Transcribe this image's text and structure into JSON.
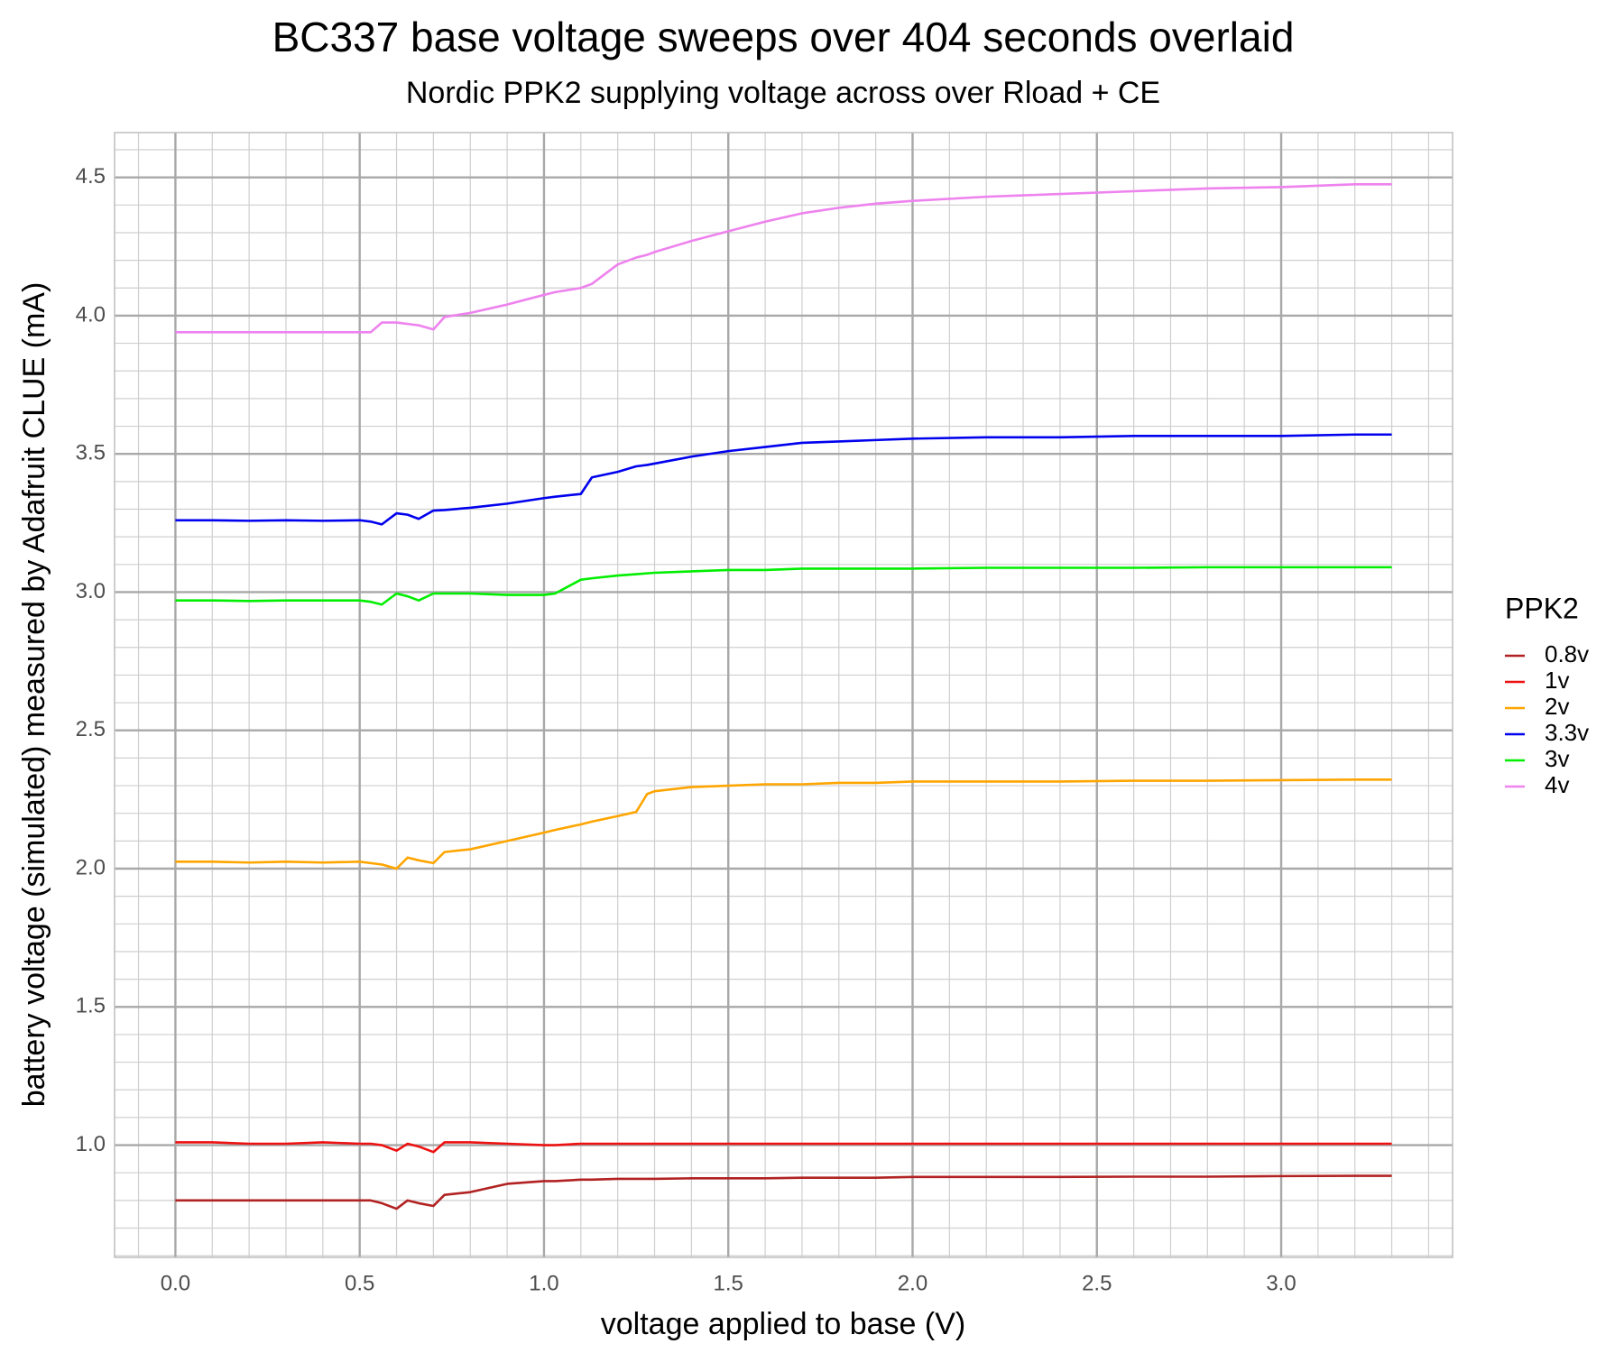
{
  "chart_data": {
    "type": "line",
    "title": "BC337 base voltage sweeps over 404 seconds overlaid",
    "subtitle": "Nordic PPK2 supplying voltage across over Rload + CE",
    "x_label": "voltage applied to base (V)",
    "y_label": "battery voltage (simulated) measured by Adafruit CLUE (mA)",
    "legend_title": "PPK2",
    "legend_position": "right",
    "grid": true,
    "xlim": [
      -0.165,
      3.465
    ],
    "ylim": [
      0.594,
      4.662
    ],
    "xticks": [
      {
        "value": 0,
        "label": "0.0"
      },
      0.5,
      {
        "value": 1,
        "label": "1.0"
      },
      1.5,
      {
        "value": 2,
        "label": "2.0"
      },
      2.5,
      {
        "value": 3,
        "label": "3.0"
      }
    ],
    "yticks": [
      {
        "value": 1,
        "label": "1.0"
      },
      1.5,
      {
        "value": 2,
        "label": "2.0"
      },
      2.5,
      {
        "value": 3,
        "label": "3.0"
      },
      3.5,
      {
        "value": 4,
        "label": "4.0"
      },
      4.5
    ],
    "x_minor_ticks": [
      -0.1,
      0.1,
      0.2,
      0.3,
      0.4,
      0.6,
      0.7,
      0.8,
      0.9,
      1.1,
      1.2,
      1.3,
      1.4,
      1.6,
      1.7,
      1.8,
      1.9,
      2.1,
      2.2,
      2.3,
      2.4,
      2.6,
      2.7,
      2.8,
      2.9,
      3.1,
      3.2,
      3.3,
      3.4
    ],
    "y_minor_ticks": [
      0.6,
      0.7,
      0.8,
      0.9,
      1.1,
      1.2,
      1.3,
      1.4,
      1.6,
      1.7,
      1.8,
      1.9,
      2.1,
      2.2,
      2.3,
      2.4,
      2.6,
      2.7,
      2.8,
      2.9,
      3.1,
      3.2,
      3.3,
      3.4,
      3.6,
      3.7,
      3.8,
      3.9,
      4.1,
      4.2,
      4.3,
      4.4,
      4.6
    ],
    "x": [
      0,
      0.1,
      0.2,
      0.3,
      0.4,
      0.5,
      0.53,
      0.56,
      0.6,
      0.63,
      0.66,
      0.7,
      0.73,
      0.8,
      0.9,
      1.0,
      1.03,
      1.1,
      1.13,
      1.2,
      1.25,
      1.28,
      1.3,
      1.4,
      1.5,
      1.6,
      1.7,
      1.8,
      1.9,
      2.0,
      2.2,
      2.4,
      2.6,
      2.8,
      3.0,
      3.2,
      3.3
    ],
    "series": [
      {
        "name": "0.8v",
        "color": "#b22222",
        "values": [
          0.8,
          0.8,
          0.8,
          0.8,
          0.8,
          0.8,
          0.8,
          0.79,
          0.77,
          0.8,
          0.79,
          0.78,
          0.82,
          0.83,
          0.86,
          0.87,
          0.87,
          0.875,
          0.875,
          0.878,
          0.878,
          0.878,
          0.878,
          0.88,
          0.88,
          0.88,
          0.882,
          0.882,
          0.882,
          0.885,
          0.885,
          0.885,
          0.886,
          0.886,
          0.888,
          0.889,
          0.889
        ]
      },
      {
        "name": "1v",
        "color": "#ee1111",
        "values": [
          1.01,
          1.01,
          1.005,
          1.005,
          1.01,
          1.005,
          1.005,
          1.0,
          0.98,
          1.005,
          0.995,
          0.975,
          1.01,
          1.01,
          1.005,
          1.0,
          1.0,
          1.005,
          1.005,
          1.005,
          1.005,
          1.005,
          1.005,
          1.005,
          1.005,
          1.005,
          1.005,
          1.005,
          1.005,
          1.005,
          1.005,
          1.005,
          1.005,
          1.005,
          1.005,
          1.005,
          1.005
        ]
      },
      {
        "name": "2v",
        "color": "#ffa500",
        "values": [
          2.025,
          2.025,
          2.022,
          2.025,
          2.022,
          2.025,
          2.02,
          2.015,
          2.0,
          2.04,
          2.03,
          2.02,
          2.06,
          2.07,
          2.1,
          2.13,
          2.14,
          2.16,
          2.17,
          2.19,
          2.205,
          2.27,
          2.28,
          2.295,
          2.3,
          2.305,
          2.305,
          2.31,
          2.31,
          2.315,
          2.315,
          2.315,
          2.318,
          2.318,
          2.32,
          2.322,
          2.322
        ]
      },
      {
        "name": "3.3v",
        "color": "#0000ee",
        "values": [
          3.26,
          3.26,
          3.258,
          3.26,
          3.258,
          3.26,
          3.255,
          3.245,
          3.285,
          3.28,
          3.265,
          3.295,
          3.297,
          3.305,
          3.32,
          3.34,
          3.345,
          3.355,
          3.415,
          3.435,
          3.455,
          3.46,
          3.465,
          3.49,
          3.51,
          3.525,
          3.54,
          3.545,
          3.55,
          3.555,
          3.56,
          3.56,
          3.565,
          3.565,
          3.565,
          3.57,
          3.57
        ]
      },
      {
        "name": "3v",
        "color": "#00ee00",
        "values": [
          2.97,
          2.97,
          2.968,
          2.97,
          2.97,
          2.97,
          2.965,
          2.955,
          2.995,
          2.985,
          2.97,
          2.995,
          2.995,
          2.995,
          2.99,
          2.99,
          2.995,
          3.045,
          3.05,
          3.06,
          3.065,
          3.068,
          3.07,
          3.075,
          3.08,
          3.08,
          3.085,
          3.085,
          3.085,
          3.085,
          3.088,
          3.088,
          3.088,
          3.09,
          3.09,
          3.09,
          3.09
        ]
      },
      {
        "name": "4v",
        "color": "#ee82ee",
        "values": [
          3.94,
          3.94,
          3.94,
          3.94,
          3.94,
          3.94,
          3.94,
          3.975,
          3.975,
          3.97,
          3.965,
          3.95,
          3.995,
          4.01,
          4.04,
          4.075,
          4.085,
          4.1,
          4.115,
          4.185,
          4.21,
          4.22,
          4.23,
          4.27,
          4.305,
          4.34,
          4.37,
          4.39,
          4.405,
          4.415,
          4.43,
          4.44,
          4.45,
          4.46,
          4.465,
          4.475,
          4.475
        ]
      }
    ]
  }
}
